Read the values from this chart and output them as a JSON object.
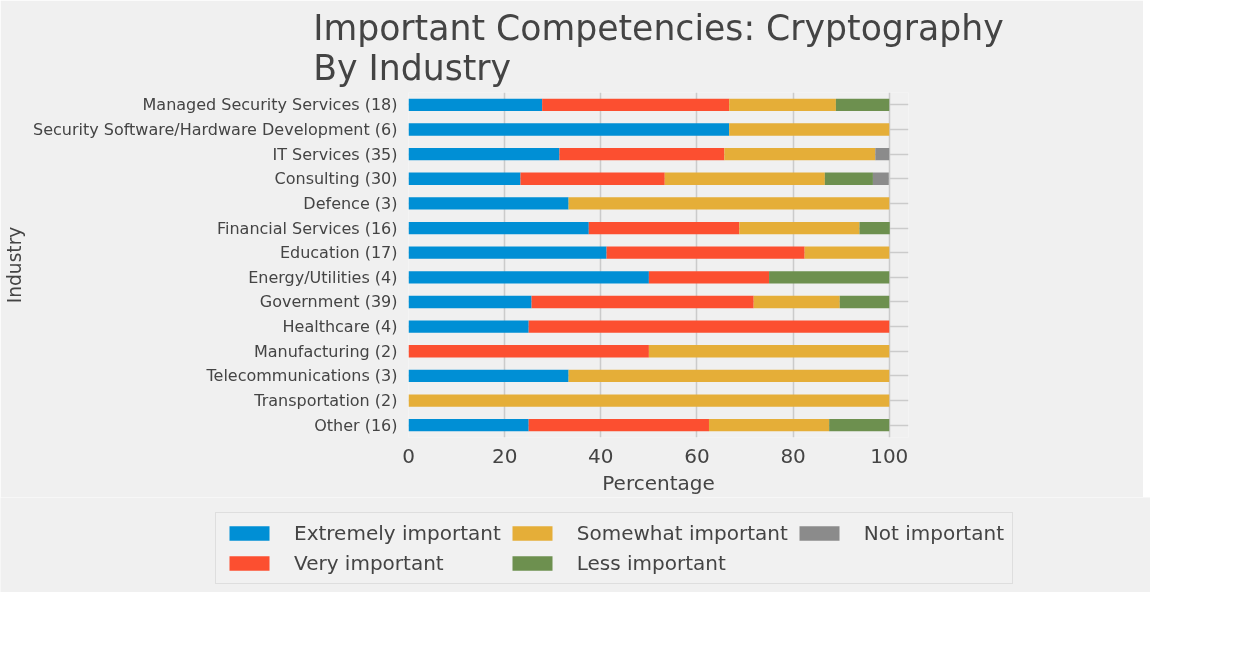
{
  "chart_data": {
    "type": "bar",
    "orientation": "horizontal",
    "stacked": true,
    "title": "Important Competencies: Cryptography\nBy Industry",
    "xlabel": "Percentage",
    "ylabel": "Industry",
    "categories": [
      "Managed Security Services (18)",
      "Security Software/Hardware Development (6)",
      "IT Services (35)",
      "Consulting (30)",
      "Defence (3)",
      "Financial Services (16)",
      "Education (17)",
      "Energy/Utilities (4)",
      "Government (39)",
      "Healthcare (4)",
      "Manufacturing (2)",
      "Telecommunications (3)",
      "Transportation (2)",
      "Other (16)"
    ],
    "series": [
      {
        "name": "Extremely important",
        "color": "#008fd5",
        "values": [
          27.8,
          66.7,
          31.4,
          23.3,
          33.3,
          37.5,
          41.2,
          50,
          25.6,
          25,
          0,
          33.3,
          0,
          25
        ]
      },
      {
        "name": "Very important",
        "color": "#fc4f30",
        "values": [
          38.9,
          0,
          34.3,
          30,
          0,
          31.3,
          41.2,
          25,
          46.2,
          75,
          50,
          0,
          0,
          37.5
        ]
      },
      {
        "name": "Somewhat important",
        "color": "#e5ae38",
        "values": [
          22.2,
          33.3,
          31.4,
          33.3,
          66.7,
          25,
          17.6,
          0,
          17.9,
          0,
          50,
          66.7,
          100,
          25
        ]
      },
      {
        "name": "Less important",
        "color": "#6d904f",
        "values": [
          11.1,
          0,
          0,
          10,
          0,
          6.3,
          0,
          25,
          10.3,
          0,
          0,
          0,
          0,
          12.5
        ]
      },
      {
        "name": "Not important",
        "color": "#8b8b8b",
        "values": [
          0,
          0,
          2.9,
          3.3,
          0,
          0,
          0,
          0,
          0,
          0,
          0,
          0,
          0,
          0
        ]
      }
    ],
    "xlim": [
      0,
      104
    ],
    "xticks": [
      0,
      20,
      40,
      60,
      80,
      100
    ],
    "grid": true,
    "legend": "bottom"
  }
}
